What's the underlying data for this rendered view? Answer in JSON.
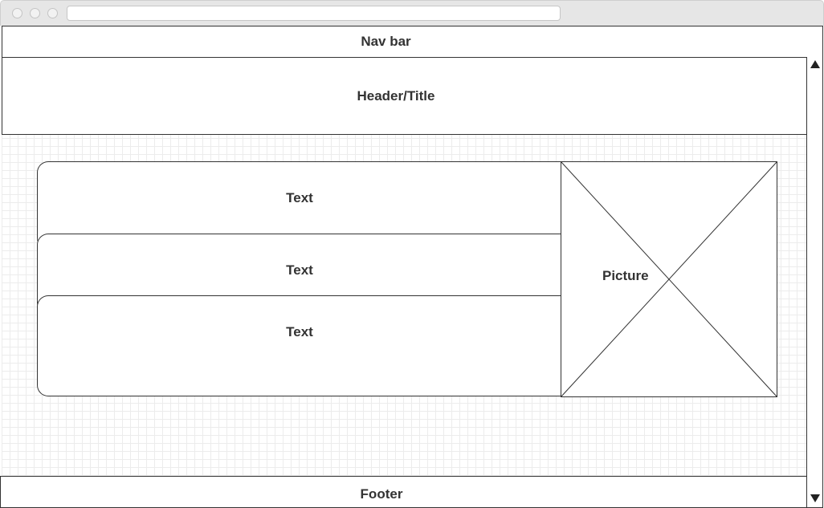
{
  "navbar": {
    "label": "Nav bar"
  },
  "header": {
    "label": "Header/Title"
  },
  "text_blocks": [
    {
      "label": "Text"
    },
    {
      "label": "Text"
    },
    {
      "label": "Text"
    }
  ],
  "picture": {
    "label": "Picture"
  },
  "footer": {
    "label": "Footer"
  },
  "icons": {
    "scroll_up": "triangle-up",
    "scroll_down": "triangle-down",
    "window_controls": "circle"
  },
  "colors": {
    "outline": "#333333",
    "grid": "#ececec",
    "chrome": "#e6e6e6"
  }
}
